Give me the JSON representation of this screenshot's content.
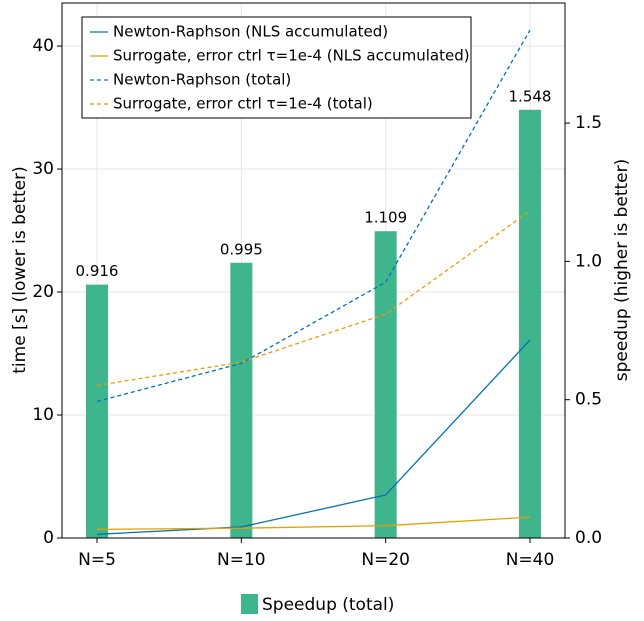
{
  "chart_data": {
    "type": "combo",
    "categories": [
      "N=5",
      "N=10",
      "N=20",
      "N=40"
    ],
    "ylabel": "time [s] (lower is better)",
    "y2label": "speedup (higher is better)",
    "ylim": [
      0,
      43.5
    ],
    "yticks": [
      0,
      10,
      20,
      30,
      40
    ],
    "y2lim": [
      0,
      1.934
    ],
    "y2ticks": [
      {
        "value": 0,
        "label": "0.0"
      },
      0.5,
      {
        "value": 1,
        "label": "1.0"
      },
      1.5
    ],
    "grid": true,
    "legend": "upper-left",
    "series": [
      {
        "name": "Newton-Raphson (NLS accumulated)",
        "type": "line",
        "linestyle": "solid",
        "color": "#0072b2",
        "values": [
          0.3,
          0.9,
          3.5,
          16.1
        ]
      },
      {
        "name": "Surrogate, error ctrl τ=1e-4 (NLS accumulated)",
        "type": "line",
        "linestyle": "solid",
        "color": "#e69f00",
        "values": [
          0.7,
          0.8,
          1.0,
          1.7
        ]
      },
      {
        "name": "Newton-Raphson (total)",
        "type": "line",
        "linestyle": "dashed",
        "color": "#0072b2",
        "values": [
          11.1,
          14.2,
          20.8,
          41.3
        ]
      },
      {
        "name": "Surrogate, error ctrl τ=1e-4 (total)",
        "type": "line",
        "linestyle": "dashed",
        "color": "#e69f00",
        "values": [
          12.4,
          14.3,
          18.2,
          26.6
        ]
      },
      {
        "name": "Speedup (total)",
        "type": "bar",
        "axis": "y2",
        "color": "#3fb58e",
        "values": [
          0.916,
          0.995,
          1.109,
          1.548
        ]
      }
    ]
  }
}
